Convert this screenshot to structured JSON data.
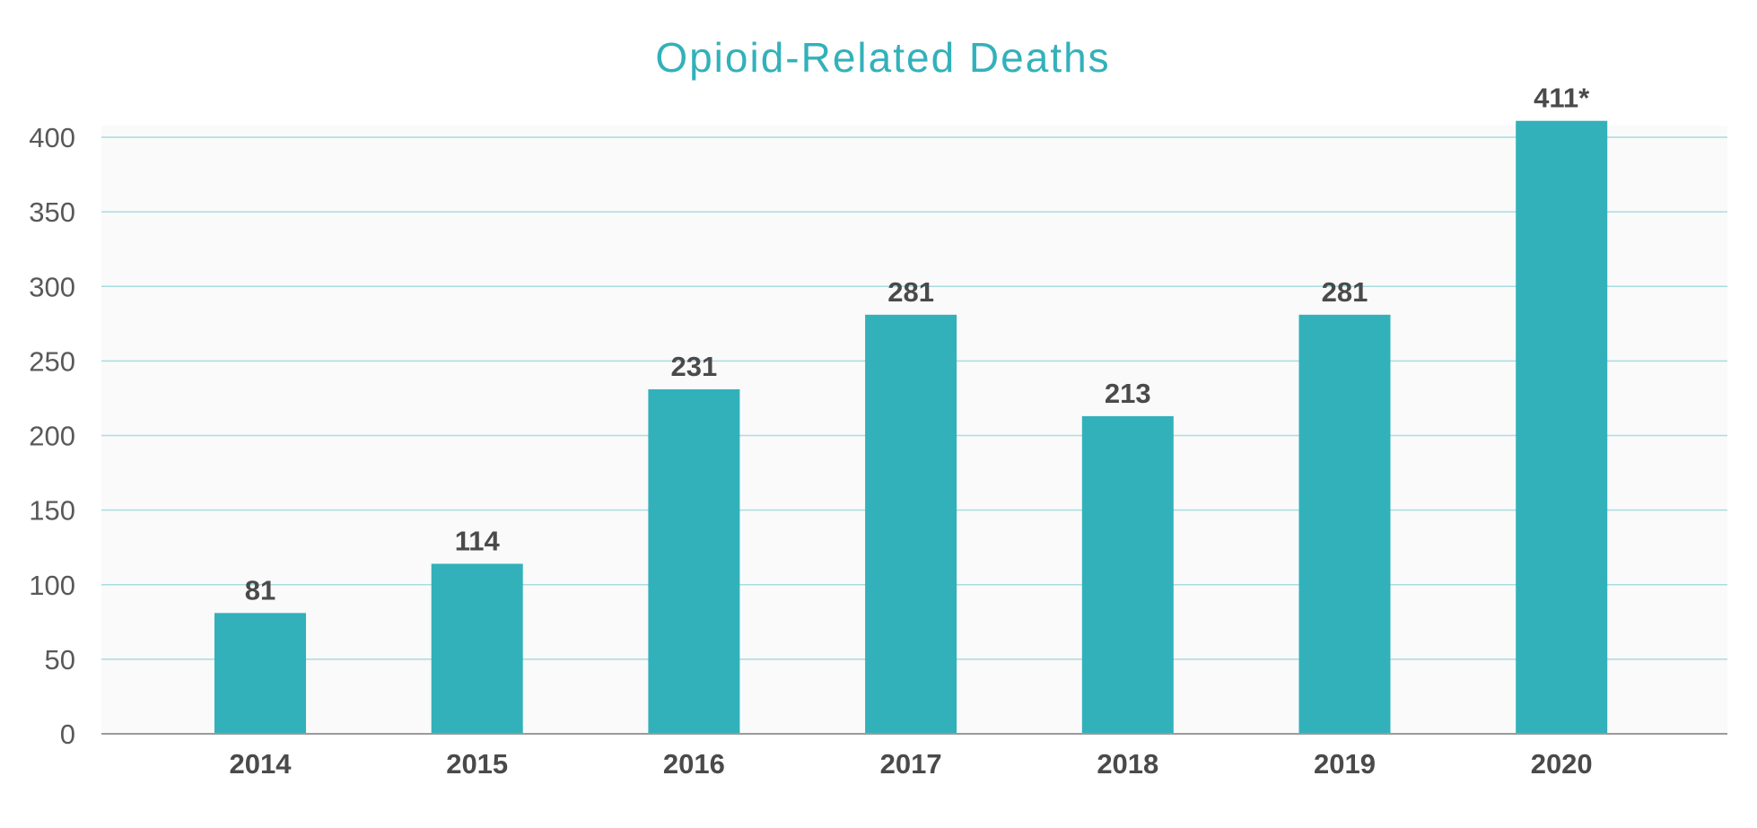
{
  "chart_data": {
    "type": "bar",
    "title": "Opioid-Related Deaths",
    "categories": [
      "2014",
      "2015",
      "2016",
      "2017",
      "2018",
      "2019",
      "2020"
    ],
    "values": [
      81,
      114,
      231,
      281,
      213,
      281,
      411
    ],
    "data_labels": [
      "81",
      "114",
      "231",
      "281",
      "213",
      "281",
      "411*"
    ],
    "yticks": [
      "0",
      "50",
      "100",
      "150",
      "200",
      "250",
      "300",
      "350",
      "400"
    ],
    "ylim": [
      0,
      400
    ],
    "xlabel": "",
    "ylabel": "",
    "grid": true,
    "legend": "none",
    "colors": {
      "bar": "#32b1ba",
      "title": "#32b1ba",
      "gridline": "#a8dde0",
      "plot_background": "#fafafa",
      "axis_line": "#9a9a9a"
    }
  }
}
